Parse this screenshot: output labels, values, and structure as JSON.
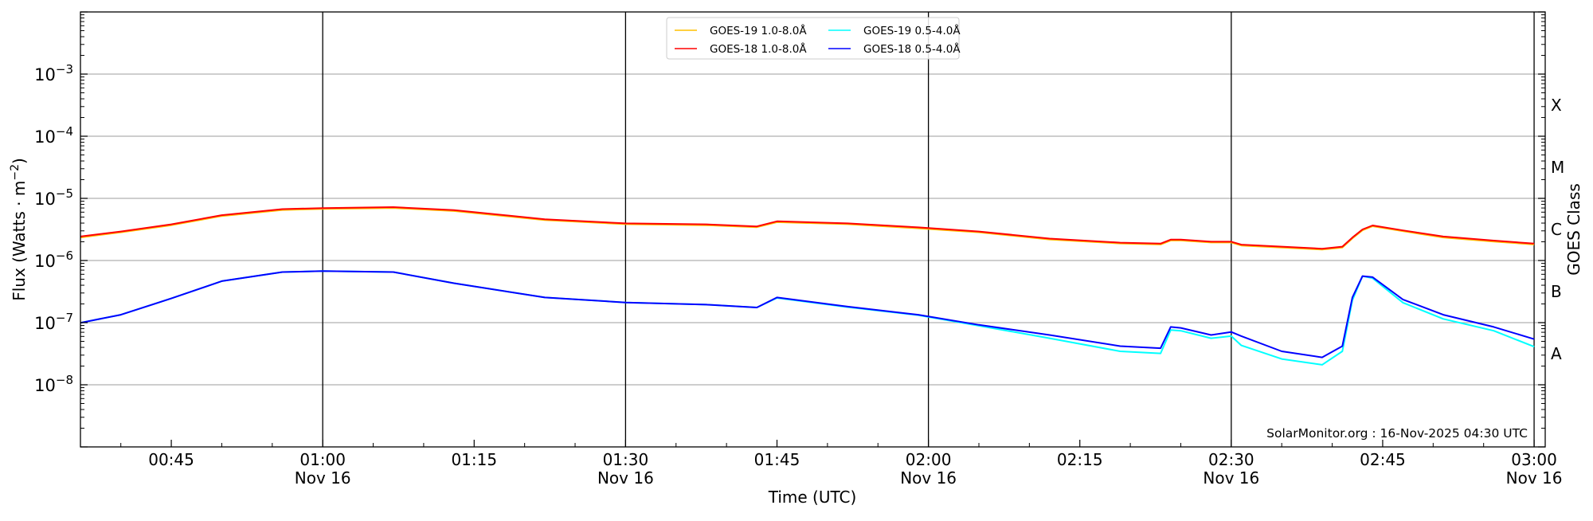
{
  "chart_data": {
    "type": "line",
    "title": "",
    "xlabel": "Time (UTC)",
    "ylabel": "Flux (Watts · m",
    "ylabel_sup": "−2",
    "ylabel_close": ")",
    "y2label": "GOES Class",
    "yscale": "log",
    "ylim": [
      1e-09,
      0.01
    ],
    "xlim_minutes": [
      36,
      181.1
    ],
    "grid": "horizontal",
    "legend_position": "top-center",
    "annotation": "SolarMonitor.org : 16-Nov-2025 04:30 UTC",
    "yticks": [
      {
        "exp": "−3",
        "log": -3
      },
      {
        "exp": "−4",
        "log": -4
      },
      {
        "exp": "−5",
        "log": -5
      },
      {
        "exp": "−6",
        "log": -6
      },
      {
        "exp": "−7",
        "log": -7
      },
      {
        "exp": "−8",
        "log": -8
      }
    ],
    "ytick_base": "10",
    "xticks": [
      {
        "time": "00:45",
        "minutes": 45,
        "date": ""
      },
      {
        "time": "01:00",
        "minutes": 60,
        "date": "Nov 16"
      },
      {
        "time": "01:15",
        "minutes": 75,
        "date": ""
      },
      {
        "time": "01:30",
        "minutes": 90,
        "date": "Nov 16"
      },
      {
        "time": "01:45",
        "minutes": 105,
        "date": ""
      },
      {
        "time": "02:00",
        "minutes": 120,
        "date": "Nov 16"
      },
      {
        "time": "02:15",
        "minutes": 135,
        "date": ""
      },
      {
        "time": "02:30",
        "minutes": 150,
        "date": "Nov 16"
      },
      {
        "time": "02:45",
        "minutes": 165,
        "date": ""
      },
      {
        "time": "03:00",
        "minutes": 180,
        "date": "Nov 16"
      }
    ],
    "goes_classes": [
      {
        "label": "X",
        "log": -3.5
      },
      {
        "label": "M",
        "log": -4.5
      },
      {
        "label": "C",
        "log": -5.5
      },
      {
        "label": "B",
        "log": -6.5
      },
      {
        "label": "A",
        "log": -7.5
      }
    ],
    "x": [
      "00:36",
      "00:40",
      "00:45",
      "00:50",
      "00:56",
      "01:00",
      "01:07",
      "01:13",
      "01:22",
      "01:30",
      "01:38",
      "01:43",
      "01:45",
      "01:52",
      "01:59",
      "02:05",
      "02:12",
      "02:19",
      "02:23",
      "02:24",
      "02:25",
      "02:28",
      "02:30",
      "02:31",
      "02:35",
      "02:39",
      "02:41",
      "02:42",
      "02:43",
      "02:44",
      "02:47",
      "02:51",
      "02:56",
      "03:00"
    ],
    "series": [
      {
        "name": "GOES-19 1.0-8.0Å",
        "color": "#ffc000",
        "values": [
          2.35e-06,
          2.84e-06,
          3.7e-06,
          5.2e-06,
          6.5e-06,
          6.75e-06,
          7e-06,
          6.26e-06,
          4.47e-06,
          3.84e-06,
          3.7e-06,
          3.43e-06,
          4.14e-06,
          3.84e-06,
          3.3e-06,
          2.84e-06,
          2.18e-06,
          1.88e-06,
          1.81e-06,
          2.1e-06,
          2.1e-06,
          1.95e-06,
          1.95e-06,
          1.74e-06,
          1.62e-06,
          1.5e-06,
          1.62e-06,
          2.27e-06,
          3.06e-06,
          3.56e-06,
          2.96e-06,
          2.35e-06,
          2.02e-06,
          1.81e-06
        ]
      },
      {
        "name": "GOES-18 1.0-8.0Å",
        "color": "#ff0000",
        "values": [
          2.43e-06,
          2.93e-06,
          3.82e-06,
          5.36e-06,
          6.71e-06,
          6.97e-06,
          7.23e-06,
          6.46e-06,
          4.61e-06,
          3.96e-06,
          3.82e-06,
          3.54e-06,
          4.27e-06,
          3.96e-06,
          3.41e-06,
          2.93e-06,
          2.25e-06,
          1.94e-06,
          1.87e-06,
          2.17e-06,
          2.17e-06,
          2.01e-06,
          2.01e-06,
          1.8e-06,
          1.67e-06,
          1.55e-06,
          1.67e-06,
          2.34e-06,
          3.16e-06,
          3.67e-06,
          3.05e-06,
          2.43e-06,
          2.09e-06,
          1.87e-06
        ]
      },
      {
        "name": "GOES-19 0.5-4.0Å",
        "color": "#00ffff",
        "values": [
          9.93e-08,
          1.34e-07,
          2.45e-07,
          4.65e-07,
          6.52e-07,
          6.76e-07,
          6.52e-07,
          4.31e-07,
          2.54e-07,
          2.11e-07,
          1.95e-07,
          1.75e-07,
          2.5e-07,
          1.78e-07,
          1.32e-07,
          8.9e-08,
          5.6e-08,
          3.46e-08,
          3.2e-08,
          7.6e-08,
          7.4e-08,
          5.6e-08,
          6.08e-08,
          4.3e-08,
          2.6e-08,
          2.1e-08,
          3.46e-08,
          2.3e-07,
          5.6e-07,
          5.2e-07,
          2.1e-07,
          1.15e-07,
          7.4e-08,
          4.1e-08
        ]
      },
      {
        "name": "GOES-18 0.5-4.0Å",
        "color": "#0000ff",
        "values": [
          9.93e-08,
          1.34e-07,
          2.45e-07,
          4.65e-07,
          6.52e-07,
          6.76e-07,
          6.52e-07,
          4.31e-07,
          2.54e-07,
          2.11e-07,
          1.95e-07,
          1.75e-07,
          2.54e-07,
          1.81e-07,
          1.34e-07,
          9.2e-08,
          6.32e-08,
          4.18e-08,
          3.88e-08,
          8.53e-08,
          8.22e-08,
          6.32e-08,
          7.08e-08,
          6.08e-08,
          3.46e-08,
          2.76e-08,
          4.18e-08,
          2.54e-07,
          5.6e-07,
          5.4e-07,
          2.36e-07,
          1.34e-07,
          8.53e-08,
          5.43e-08
        ]
      }
    ]
  }
}
